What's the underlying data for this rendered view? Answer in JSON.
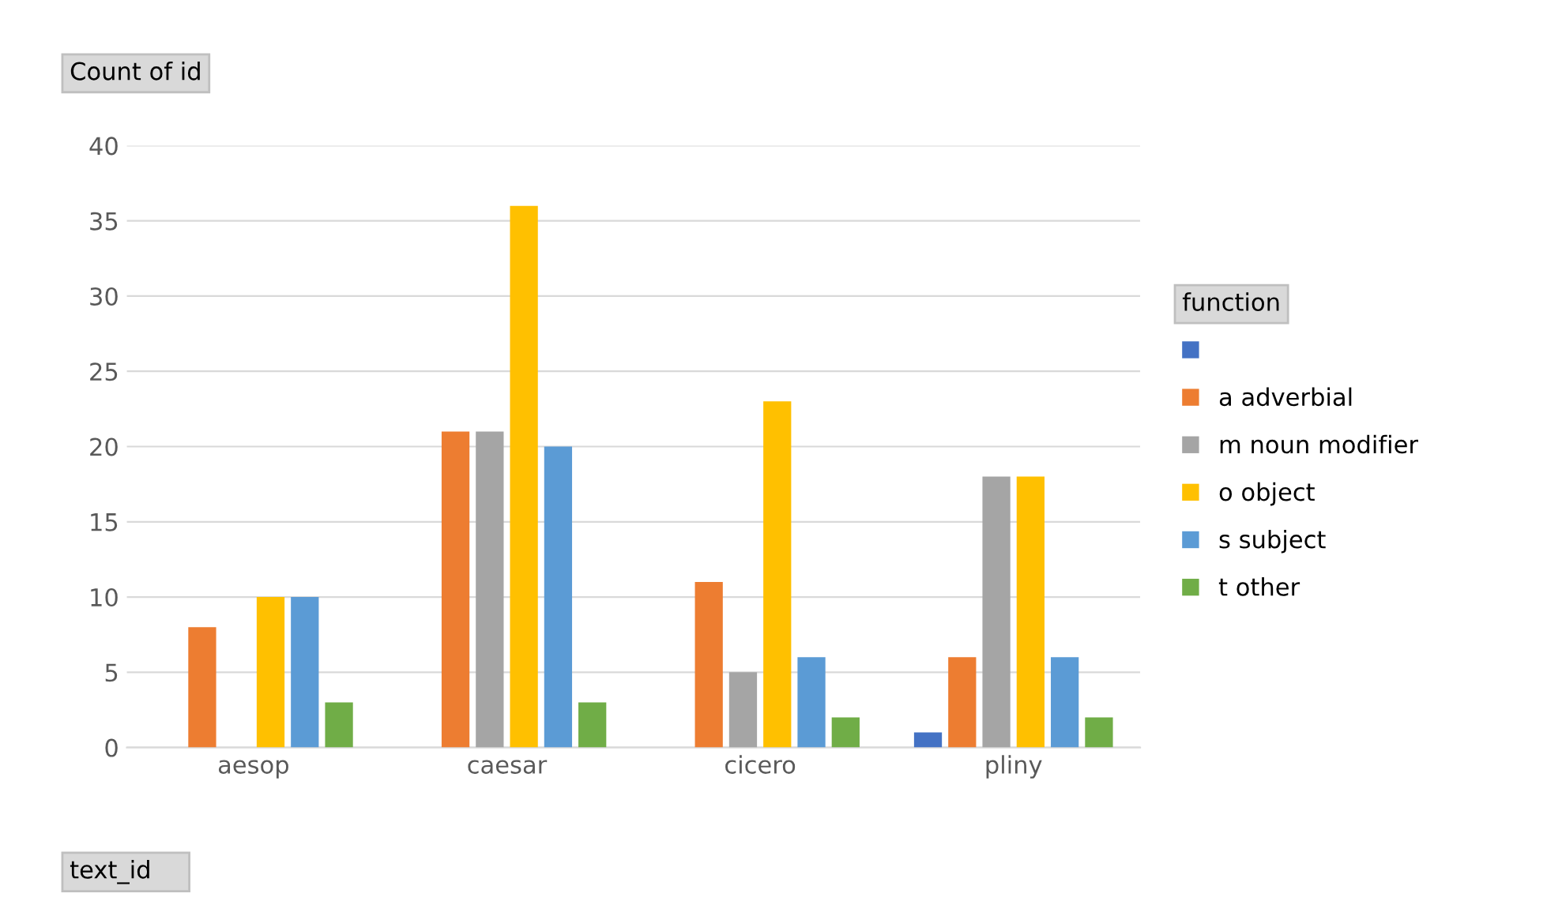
{
  "chart_data": {
    "type": "bar",
    "ylabel": "Count of id",
    "xlabel": "text_id",
    "legend_title": "function",
    "categories": [
      "aesop",
      "caesar",
      "cicero",
      "pliny"
    ],
    "series": [
      {
        "color": "#4472c4",
        "values": [
          null,
          null,
          null,
          1
        ]
      },
      {
        "name": "a adverbial",
        "color": "#ed7d31",
        "values": [
          8,
          21,
          11,
          6
        ]
      },
      {
        "name": "m noun modifier",
        "color": "#a5a5a5",
        "values": [
          null,
          21,
          5,
          18
        ]
      },
      {
        "name": "o object",
        "color": "#ffc000",
        "values": [
          10,
          36,
          23,
          18
        ]
      },
      {
        "name": "s subject",
        "color": "#5b9bd5",
        "values": [
          10,
          20,
          6,
          6
        ]
      },
      {
        "name": "t other",
        "color": "#70ad47",
        "values": [
          3,
          3,
          2,
          2
        ]
      }
    ],
    "ylim": [
      0,
      40
    ],
    "yticks": [
      0,
      5,
      10,
      15,
      20,
      25,
      30,
      35,
      40
    ],
    "grid": "y",
    "legend": "right"
  }
}
